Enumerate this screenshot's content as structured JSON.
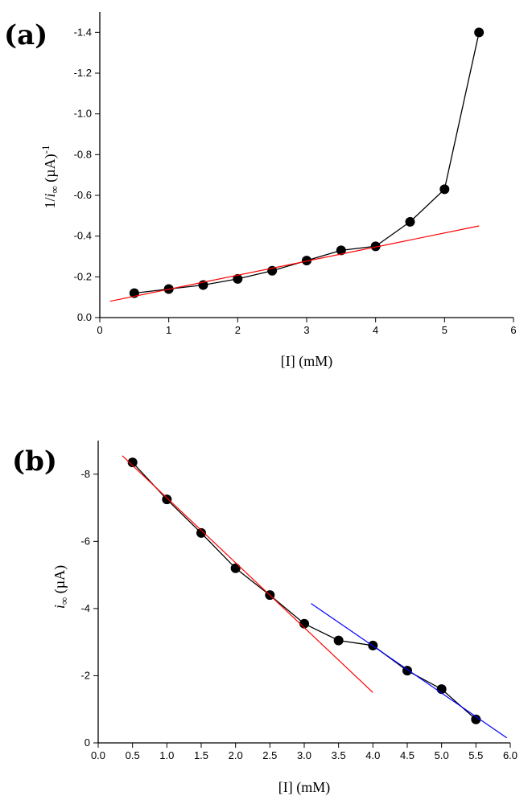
{
  "chart_data": [
    {
      "panel": "(a)",
      "type": "line",
      "xlabel": "[I]  (mM)",
      "ylabel_parts": [
        "1/",
        "i",
        "∞",
        " (µA)",
        "-1"
      ],
      "xlim": [
        0,
        6
      ],
      "ylim": [
        0,
        -1.5
      ],
      "x_ticks": [
        0,
        1,
        2,
        3,
        4,
        5,
        6
      ],
      "y_ticks": [
        0.0,
        -0.2,
        -0.4,
        -0.6,
        -0.8,
        -1.0,
        -1.2,
        -1.4
      ],
      "x_tick_labels": [
        "0",
        "1",
        "2",
        "3",
        "4",
        "5",
        "6"
      ],
      "y_tick_labels": [
        "0.0",
        "-0.2",
        "-0.4",
        "-0.6",
        "-0.8",
        "-1.0",
        "-1.2",
        "-1.4"
      ],
      "series": [
        {
          "name": "data",
          "style": "line+markers",
          "color": "#000000",
          "x": [
            0.5,
            1.0,
            1.5,
            2.0,
            2.5,
            3.0,
            3.5,
            4.0,
            4.5,
            5.0,
            5.5
          ],
          "y": [
            -0.12,
            -0.14,
            -0.16,
            -0.19,
            -0.23,
            -0.28,
            -0.33,
            -0.35,
            -0.47,
            -0.63,
            -1.4
          ]
        },
        {
          "name": "linear fit",
          "style": "line",
          "color": "#ff0000",
          "x": [
            0.15,
            5.5
          ],
          "y": [
            -0.08,
            -0.45
          ]
        }
      ]
    },
    {
      "panel": "(b)",
      "type": "line",
      "xlabel": "[I]  (mM)",
      "ylabel_parts": [
        "i",
        "∞",
        " (µA)"
      ],
      "xlim": [
        0,
        6
      ],
      "ylim": [
        0,
        -9
      ],
      "x_ticks": [
        0,
        0.5,
        1.0,
        1.5,
        2.0,
        2.5,
        3.0,
        3.5,
        4.0,
        4.5,
        5.0,
        5.5,
        6.0
      ],
      "y_ticks": [
        0,
        -2,
        -4,
        -6,
        -8
      ],
      "x_tick_labels": [
        "0.0",
        "0.5",
        "1.0",
        "1.5",
        "2.0",
        "2.5",
        "3.0",
        "3.5",
        "4.0",
        "4.5",
        "5.0",
        "5.5",
        "6.0"
      ],
      "y_tick_labels": [
        "0",
        "-2",
        "-4",
        "-6",
        "-8"
      ],
      "series": [
        {
          "name": "data",
          "style": "line+markers",
          "color": "#000000",
          "x": [
            0.5,
            1.0,
            1.5,
            2.0,
            2.5,
            3.0,
            3.5,
            4.0,
            4.5,
            5.0,
            5.5
          ],
          "y": [
            -8.35,
            -7.25,
            -6.25,
            -5.2,
            -4.4,
            -3.55,
            -3.05,
            -2.9,
            -2.15,
            -1.6,
            -0.7
          ]
        },
        {
          "name": "low fit",
          "style": "line",
          "color": "#ff0000",
          "x": [
            0.35,
            4.0
          ],
          "y": [
            -8.55,
            -1.5
          ]
        },
        {
          "name": "high fit",
          "style": "line",
          "color": "#0000ff",
          "x": [
            3.1,
            5.95
          ],
          "y": [
            -4.15,
            -0.15
          ]
        }
      ]
    }
  ]
}
